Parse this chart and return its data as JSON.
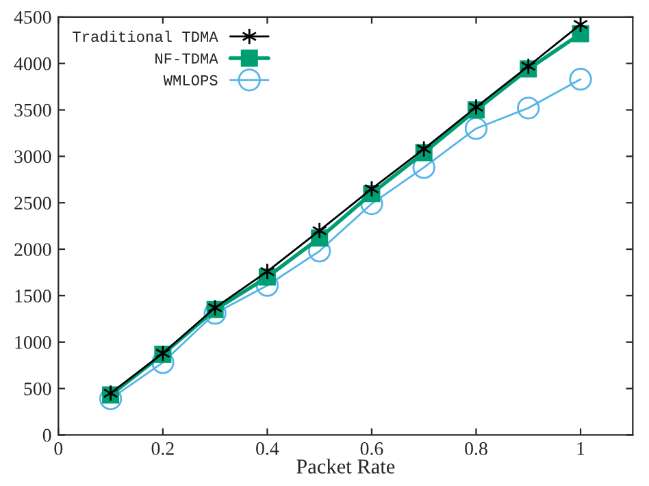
{
  "chart_data": {
    "type": "line",
    "xlabel": "Packet Rate",
    "x": [
      0.1,
      0.2,
      0.3,
      0.4,
      0.5,
      0.6,
      0.7,
      0.8,
      0.9,
      1.0
    ],
    "series": [
      {
        "name": "Traditional TDMA",
        "color": "#000000",
        "marker": "cross",
        "values": [
          450,
          880,
          1370,
          1760,
          2200,
          2650,
          3080,
          3530,
          3970,
          4420
        ]
      },
      {
        "name": "NF-TDMA",
        "color": "#009e73",
        "marker": "square",
        "values": [
          430,
          870,
          1350,
          1700,
          2120,
          2600,
          3040,
          3500,
          3940,
          4320
        ]
      },
      {
        "name": "WMLOPS",
        "color": "#56b4e9",
        "marker": "circle",
        "values": [
          390,
          780,
          1310,
          1610,
          1980,
          2490,
          2880,
          3300,
          3520,
          3830
        ]
      }
    ],
    "xlim": [
      0,
      1.1
    ],
    "xticks": [
      0,
      0.2,
      0.4,
      0.6,
      0.8,
      1
    ],
    "ylim": [
      0,
      4500
    ],
    "yticks": [
      0,
      500,
      1000,
      1500,
      2000,
      2500,
      3000,
      3500,
      4000,
      4500
    ],
    "grid": false,
    "legend": "top left"
  }
}
